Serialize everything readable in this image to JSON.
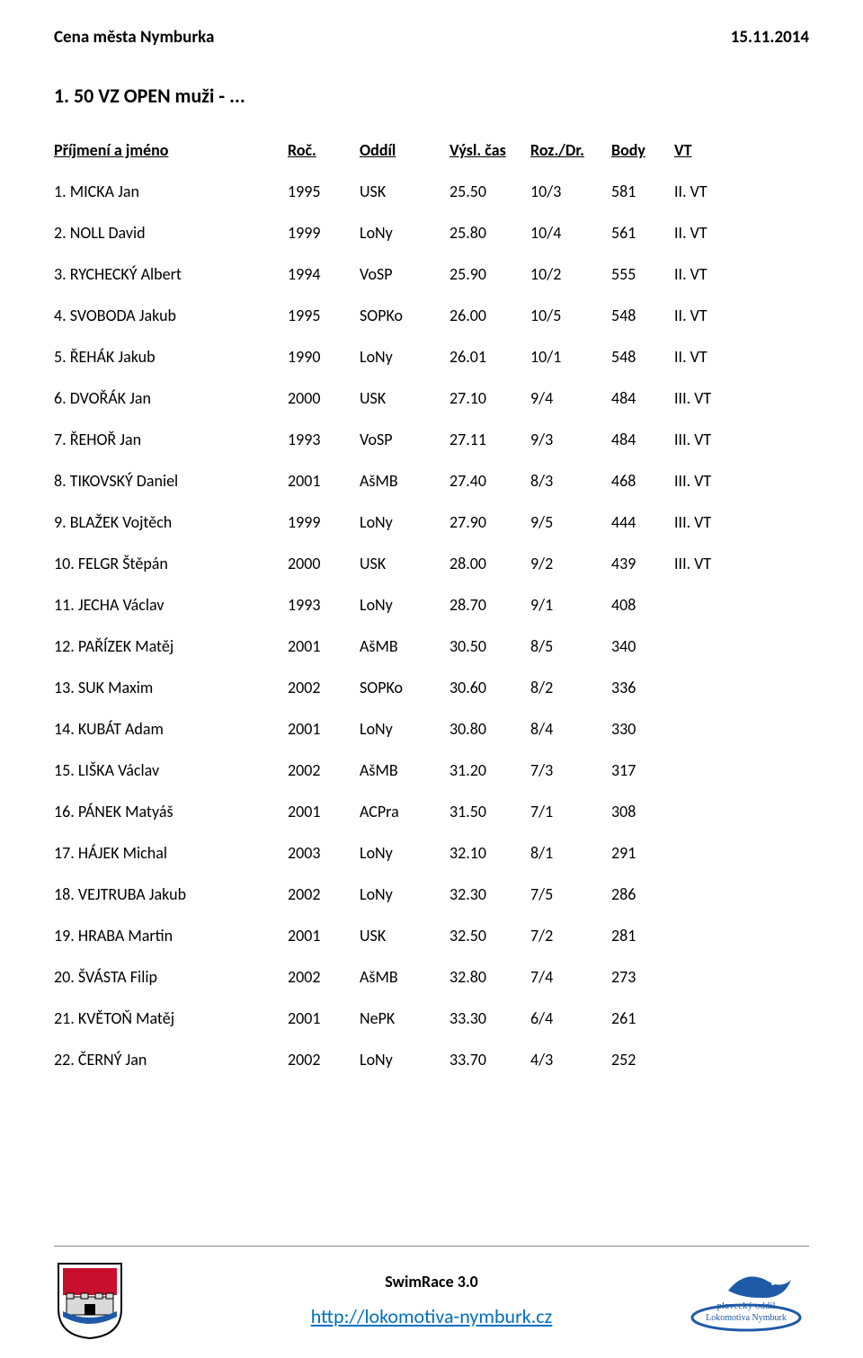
{
  "header": {
    "title": "Cena města Nymburka",
    "date": "15.11.2014"
  },
  "section_title": "1. 50 VZ OPEN muži - ...",
  "columns": {
    "name": "Příjmení a jméno",
    "year": "Roč.",
    "club": "Oddíl",
    "time": "Výsl. čas",
    "lane": "Roz./Dr.",
    "pts": "Body",
    "cls": "VT"
  },
  "rows": [
    {
      "n": "1. MICKA Jan",
      "y": "1995",
      "c": "USK",
      "t": "25.50",
      "l": "10/3",
      "p": "581",
      "v": "II. VT"
    },
    {
      "n": "2. NOLL David",
      "y": "1999",
      "c": "LoNy",
      "t": "25.80",
      "l": "10/4",
      "p": "561",
      "v": "II. VT"
    },
    {
      "n": "3. RYCHECKÝ Albert",
      "y": "1994",
      "c": "VoSP",
      "t": "25.90",
      "l": "10/2",
      "p": "555",
      "v": "II. VT"
    },
    {
      "n": "4. SVOBODA Jakub",
      "y": "1995",
      "c": "SOPKo",
      "t": "26.00",
      "l": "10/5",
      "p": "548",
      "v": "II. VT"
    },
    {
      "n": "5. ŘEHÁK Jakub",
      "y": "1990",
      "c": "LoNy",
      "t": "26.01",
      "l": "10/1",
      "p": "548",
      "v": "II. VT"
    },
    {
      "n": "6. DVOŘÁK Jan",
      "y": "2000",
      "c": "USK",
      "t": "27.10",
      "l": "9/4",
      "p": "484",
      "v": "III. VT"
    },
    {
      "n": "7. ŘEHOŘ Jan",
      "y": "1993",
      "c": "VoSP",
      "t": "27.11",
      "l": "9/3",
      "p": "484",
      "v": "III. VT"
    },
    {
      "n": "8. TIKOVSKÝ Daniel",
      "y": "2001",
      "c": "AšMB",
      "t": "27.40",
      "l": "8/3",
      "p": "468",
      "v": "III. VT"
    },
    {
      "n": "9. BLAŽEK Vojtěch",
      "y": "1999",
      "c": "LoNy",
      "t": "27.90",
      "l": "9/5",
      "p": "444",
      "v": "III. VT"
    },
    {
      "n": "10. FELGR Štěpán",
      "y": "2000",
      "c": "USK",
      "t": "28.00",
      "l": "9/2",
      "p": "439",
      "v": "III. VT"
    },
    {
      "n": "11. JECHA Václav",
      "y": "1993",
      "c": "LoNy",
      "t": "28.70",
      "l": "9/1",
      "p": "408",
      "v": ""
    },
    {
      "n": "12. PAŘÍZEK Matěj",
      "y": "2001",
      "c": "AšMB",
      "t": "30.50",
      "l": "8/5",
      "p": "340",
      "v": ""
    },
    {
      "n": "13. SUK Maxim",
      "y": "2002",
      "c": "SOPKo",
      "t": "30.60",
      "l": "8/2",
      "p": "336",
      "v": ""
    },
    {
      "n": "14. KUBÁT Adam",
      "y": "2001",
      "c": "LoNy",
      "t": "30.80",
      "l": "8/4",
      "p": "330",
      "v": ""
    },
    {
      "n": "15. LIŠKA Václav",
      "y": "2002",
      "c": "AšMB",
      "t": "31.20",
      "l": "7/3",
      "p": "317",
      "v": ""
    },
    {
      "n": "16. PÁNEK Matyáš",
      "y": "2001",
      "c": "ACPra",
      "t": "31.50",
      "l": "7/1",
      "p": "308",
      "v": ""
    },
    {
      "n": "17. HÁJEK Michal",
      "y": "2003",
      "c": "LoNy",
      "t": "32.10",
      "l": "8/1",
      "p": "291",
      "v": ""
    },
    {
      "n": "18. VEJTRUBA Jakub",
      "y": "2002",
      "c": "LoNy",
      "t": "32.30",
      "l": "7/5",
      "p": "286",
      "v": ""
    },
    {
      "n": "19. HRABA Martin",
      "y": "2001",
      "c": "USK",
      "t": "32.50",
      "l": "7/2",
      "p": "281",
      "v": ""
    },
    {
      "n": "20. ŠVÁSTA Filip",
      "y": "2002",
      "c": "AšMB",
      "t": "32.80",
      "l": "7/4",
      "p": "273",
      "v": ""
    },
    {
      "n": "21. KVĚTOŇ Matěj",
      "y": "2001",
      "c": "NePK",
      "t": "33.30",
      "l": "6/4",
      "p": "261",
      "v": ""
    },
    {
      "n": "22. ČERNÝ Jan",
      "y": "2002",
      "c": "LoNy",
      "t": "33.70",
      "l": "4/3",
      "p": "252",
      "v": ""
    }
  ],
  "footer": {
    "app": "SwimRace 3.0",
    "link": "http://lokomotiva-nymburk.cz",
    "link_color": "#0070c0"
  },
  "crest_colors": {
    "red": "#c8102e",
    "wall": "#d9d9d9",
    "stroke": "#000"
  },
  "dove_colors": {
    "blue": "#1e5aa8",
    "text": "#1e5aa8"
  }
}
